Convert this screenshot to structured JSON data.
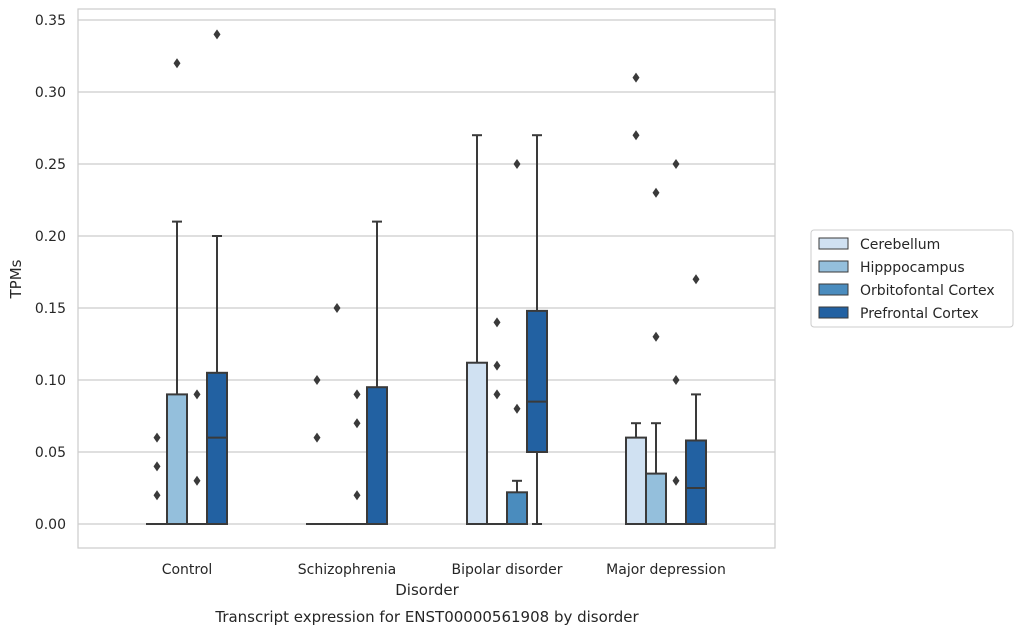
{
  "chart_data": {
    "type": "box",
    "title": "Transcript expression for ENST00000561908 by disorder",
    "xlabel": "Disorder",
    "ylabel": "TPMs",
    "ylim": [
      -0.017,
      0.357
    ],
    "yticks": [
      "0.00",
      "0.05",
      "0.10",
      "0.15",
      "0.20",
      "0.25",
      "0.30",
      "0.35"
    ],
    "ytick_values": [
      0,
      0.05,
      0.1,
      0.15,
      0.2,
      0.25,
      0.3,
      0.35
    ],
    "grid": "horizontal",
    "legend_position": "right",
    "categories": [
      "Control",
      "Schizophrenia",
      "Bipolar disorder",
      "Major depression"
    ],
    "series": [
      {
        "name": "Cerebellum",
        "color": "#d0e1f2",
        "boxes": [
          {
            "q1": 0,
            "median": 0,
            "q3": 0,
            "whisker_low": 0,
            "whisker_high": 0,
            "outliers": [
              0.02,
              0.04,
              0.06
            ]
          },
          {
            "q1": 0,
            "median": 0,
            "q3": 0,
            "whisker_low": 0,
            "whisker_high": 0,
            "outliers": [
              0.06,
              0.1
            ]
          },
          {
            "q1": 0,
            "median": 0,
            "q3": 0.112,
            "whisker_low": 0,
            "whisker_high": 0.27,
            "outliers": []
          },
          {
            "q1": 0,
            "median": 0,
            "q3": 0.06,
            "whisker_low": 0,
            "whisker_high": 0.07,
            "outliers": [
              0.27,
              0.31
            ]
          }
        ]
      },
      {
        "name": "Hipppocampus",
        "color": "#94bfdc",
        "boxes": [
          {
            "q1": 0,
            "median": 0,
            "q3": 0.09,
            "whisker_low": 0,
            "whisker_high": 0.21,
            "outliers": [
              0.32
            ]
          },
          {
            "q1": 0,
            "median": 0,
            "q3": 0,
            "whisker_low": 0,
            "whisker_high": 0,
            "outliers": [
              0.15
            ]
          },
          {
            "q1": 0,
            "median": 0,
            "q3": 0,
            "whisker_low": 0,
            "whisker_high": 0,
            "outliers": [
              0.09,
              0.11,
              0.14
            ]
          },
          {
            "q1": 0,
            "median": 0,
            "q3": 0.035,
            "whisker_low": 0,
            "whisker_high": 0.07,
            "outliers": [
              0.13,
              0.23
            ]
          }
        ]
      },
      {
        "name": "Orbitofontal Cortex",
        "color": "#4a8cbe",
        "boxes": [
          {
            "q1": 0,
            "median": 0,
            "q3": 0,
            "whisker_low": 0,
            "whisker_high": 0,
            "outliers": [
              0.03,
              0.09
            ]
          },
          {
            "q1": 0,
            "median": 0,
            "q3": 0,
            "whisker_low": 0,
            "whisker_high": 0,
            "outliers": [
              0.02,
              0.07,
              0.09
            ]
          },
          {
            "q1": 0,
            "median": 0,
            "q3": 0.022,
            "whisker_low": 0,
            "whisker_high": 0.03,
            "outliers": [
              0.08,
              0.25
            ]
          },
          {
            "q1": 0,
            "median": 0,
            "q3": 0,
            "whisker_low": 0,
            "whisker_high": 0,
            "outliers": [
              0.03,
              0.1,
              0.25
            ]
          }
        ]
      },
      {
        "name": "Prefrontal Cortex",
        "color": "#2261a2",
        "boxes": [
          {
            "q1": 0,
            "median": 0.06,
            "q3": 0.105,
            "whisker_low": 0,
            "whisker_high": 0.2,
            "outliers": [
              0.34
            ]
          },
          {
            "q1": 0,
            "median": 0,
            "q3": 0.095,
            "whisker_low": 0,
            "whisker_high": 0.21,
            "outliers": []
          },
          {
            "q1": 0.05,
            "median": 0.085,
            "q3": 0.148,
            "whisker_low": 0,
            "whisker_high": 0.27,
            "outliers": []
          },
          {
            "q1": 0,
            "median": 0.025,
            "q3": 0.058,
            "whisker_low": 0,
            "whisker_high": 0.09,
            "outliers": [
              0.17
            ]
          }
        ]
      }
    ]
  }
}
